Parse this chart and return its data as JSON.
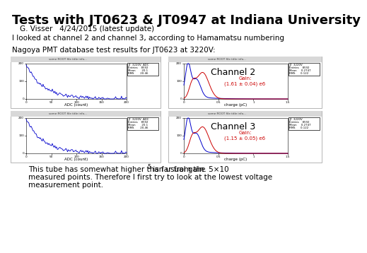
{
  "title": "Tests with JT0623 & JT0947 at Indiana University",
  "subtitle": "G. Visser   4/24/2015 (latest update)",
  "line1": "I looked at channel 2 and channel 3, according to Hamamatsu numbering",
  "line2": "Nagoya PMT database test results for JT0623 at 3220V:",
  "footer_line1": "This tube has somewhat higher than usual gain. 5×10",
  "footer_sup": "5",
  "footer_line1b": " is far from the",
  "footer_line2": "measured points. Therefore I first try to look at the lowest voltage",
  "footer_line3": "measurement point.",
  "channel2_label": "Channel 2",
  "channel3_label": "Channel 3",
  "gain2_label": "Gain:\n(1.61 ± 0.04) e6",
  "gain3_label": "Gain:\n(1.15 ± 0.05) e6",
  "bg_color": "#ffffff",
  "title_fontsize": 13,
  "subtitle_fontsize": 7.5,
  "body_fontsize": 7.5,
  "channel_fontsize": 9,
  "gain_fontsize": 5
}
